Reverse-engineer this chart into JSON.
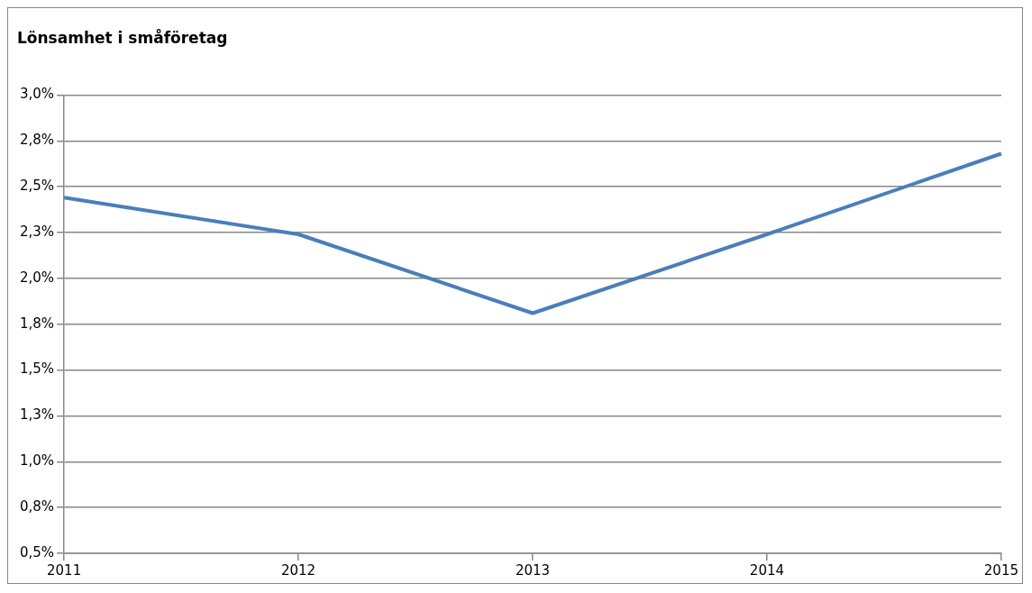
{
  "chart_data": {
    "type": "line",
    "title": "Lönsamhet i småföretag",
    "categories": [
      "2011",
      "2012",
      "2013",
      "2014",
      "2015"
    ],
    "series": [
      {
        "color": "#4a7ebb",
        "values": [
          2.44,
          2.24,
          1.81,
          2.24,
          2.68
        ]
      }
    ],
    "ylim": [
      0.5,
      3.0
    ],
    "yticks": [
      {
        "value": 0.5,
        "label": "0,5%"
      },
      {
        "value": 0.75,
        "label": "0,8%"
      },
      {
        "value": 1.0,
        "label": "1,0%"
      },
      {
        "value": 1.25,
        "label": "1,3%"
      },
      {
        "value": 1.5,
        "label": "1,5%"
      },
      {
        "value": 1.75,
        "label": "1,8%"
      },
      {
        "value": 2.0,
        "label": "2,0%"
      },
      {
        "value": 2.25,
        "label": "2,3%"
      },
      {
        "value": 2.5,
        "label": "2,5%"
      },
      {
        "value": 2.75,
        "label": "2,8%"
      },
      {
        "value": 3.0,
        "label": "3,0%"
      }
    ],
    "grid": "y",
    "legend": false,
    "marker": "none",
    "line_style": "solid"
  }
}
